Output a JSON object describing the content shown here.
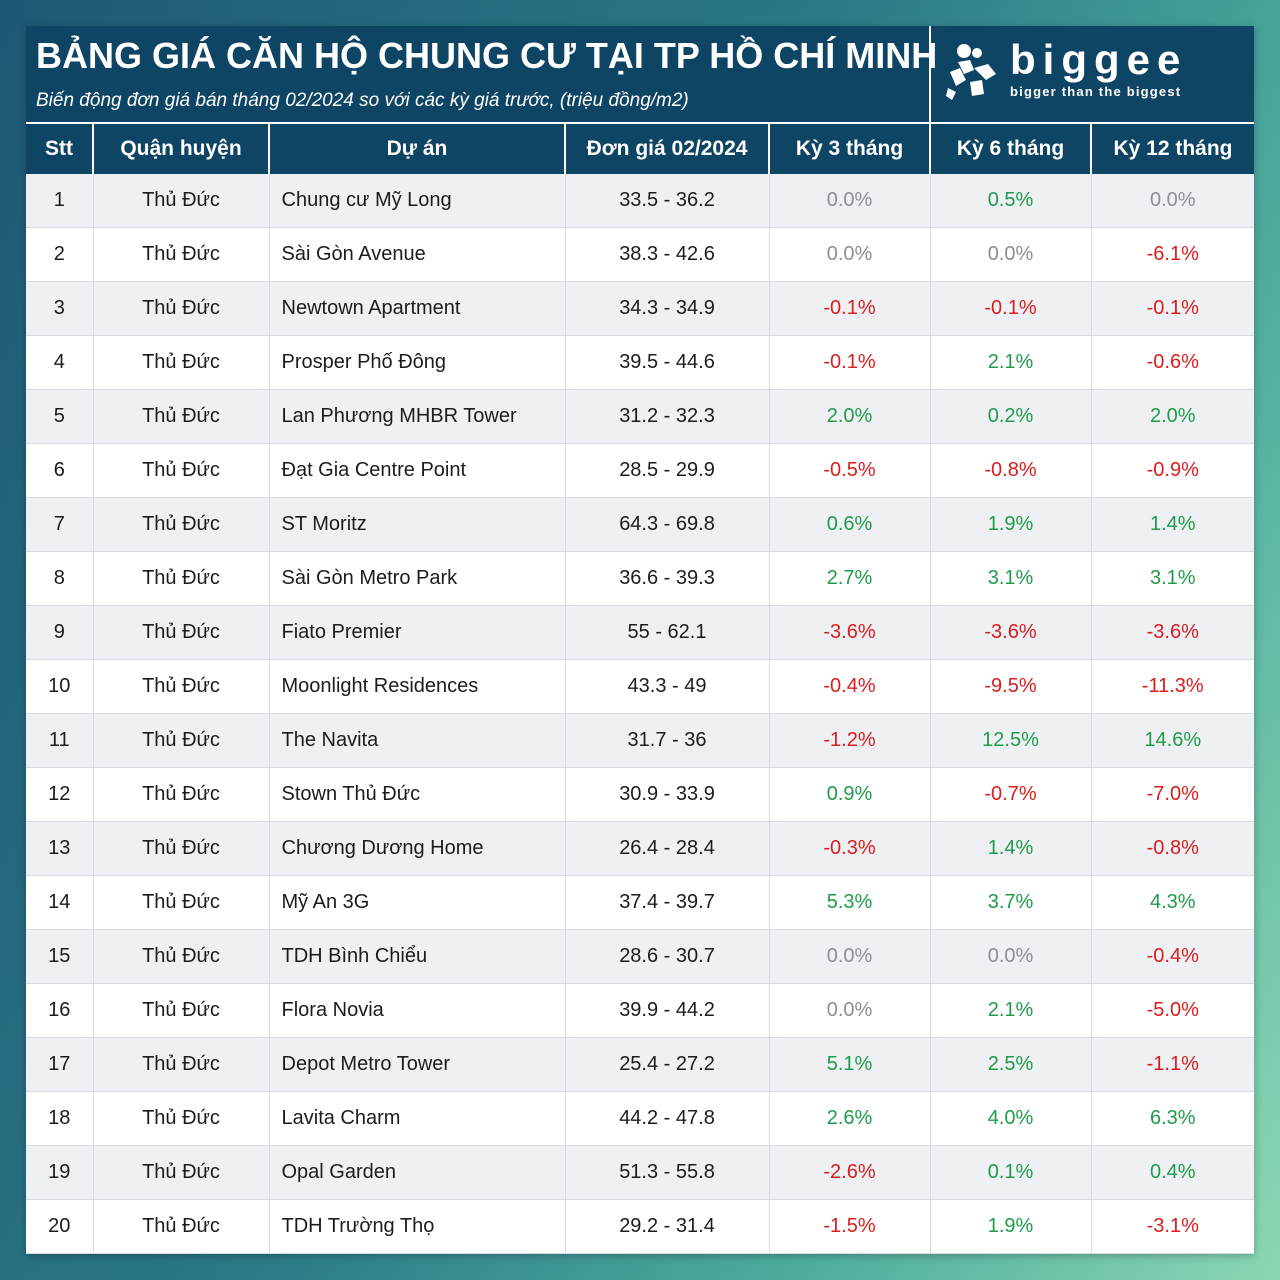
{
  "header": {
    "title": "BẢNG GIÁ CĂN HỘ CHUNG CƯ TẠI TP HỒ CHÍ MINH",
    "subtitle": "Biến động đơn giá bán tháng 02/2024 so với các kỳ giá trước, (triệu đồng/m2)"
  },
  "logo": {
    "wordmark": "biggee",
    "tagline": "bigger than the biggest",
    "icon": "biggee-logo-icon"
  },
  "colors": {
    "header_bg": "#0e4464",
    "positive": "#1f9c4b",
    "negative": "#d81e1e",
    "zero": "#8a8f96"
  },
  "table": {
    "columns": [
      "Stt",
      "Quận huyện",
      "Dự án",
      "Đơn giá 02/2024",
      "Kỳ 3 tháng",
      "Kỳ 6 tháng",
      "Kỳ 12 tháng"
    ],
    "rows": [
      {
        "stt": "1",
        "district": "Thủ Đức",
        "project": "Chung cư Mỹ Long",
        "price": "33.5 - 36.2",
        "k3": "0.0%",
        "k6": "0.5%",
        "k12": "0.0%"
      },
      {
        "stt": "2",
        "district": "Thủ Đức",
        "project": "Sài Gòn Avenue",
        "price": "38.3 - 42.6",
        "k3": "0.0%",
        "k6": "0.0%",
        "k12": "-6.1%"
      },
      {
        "stt": "3",
        "district": "Thủ Đức",
        "project": "Newtown Apartment",
        "price": "34.3 - 34.9",
        "k3": "-0.1%",
        "k6": "-0.1%",
        "k12": "-0.1%"
      },
      {
        "stt": "4",
        "district": "Thủ Đức",
        "project": "Prosper Phố Đông",
        "price": "39.5 - 44.6",
        "k3": "-0.1%",
        "k6": "2.1%",
        "k12": "-0.6%"
      },
      {
        "stt": "5",
        "district": "Thủ Đức",
        "project": "Lan Phương MHBR Tower",
        "price": "31.2 - 32.3",
        "k3": "2.0%",
        "k6": "0.2%",
        "k12": "2.0%"
      },
      {
        "stt": "6",
        "district": "Thủ Đức",
        "project": "Đạt Gia Centre Point",
        "price": "28.5 - 29.9",
        "k3": "-0.5%",
        "k6": "-0.8%",
        "k12": "-0.9%"
      },
      {
        "stt": "7",
        "district": "Thủ Đức",
        "project": "ST Moritz",
        "price": "64.3 - 69.8",
        "k3": "0.6%",
        "k6": "1.9%",
        "k12": "1.4%"
      },
      {
        "stt": "8",
        "district": "Thủ Đức",
        "project": "Sài Gòn Metro Park",
        "price": "36.6 - 39.3",
        "k3": "2.7%",
        "k6": "3.1%",
        "k12": "3.1%"
      },
      {
        "stt": "9",
        "district": "Thủ Đức",
        "project": "Fiato Premier",
        "price": "55 - 62.1",
        "k3": "-3.6%",
        "k6": "-3.6%",
        "k12": "-3.6%"
      },
      {
        "stt": "10",
        "district": "Thủ Đức",
        "project": "Moonlight Residences",
        "price": "43.3 - 49",
        "k3": "-0.4%",
        "k6": "-9.5%",
        "k12": "-11.3%"
      },
      {
        "stt": "11",
        "district": "Thủ Đức",
        "project": "The Navita",
        "price": "31.7 - 36",
        "k3": "-1.2%",
        "k6": "12.5%",
        "k12": "14.6%"
      },
      {
        "stt": "12",
        "district": "Thủ Đức",
        "project": "Stown Thủ Đức",
        "price": "30.9 - 33.9",
        "k3": "0.9%",
        "k6": "-0.7%",
        "k12": "-7.0%"
      },
      {
        "stt": "13",
        "district": "Thủ Đức",
        "project": "Chương Dương Home",
        "price": "26.4 - 28.4",
        "k3": "-0.3%",
        "k6": "1.4%",
        "k12": "-0.8%"
      },
      {
        "stt": "14",
        "district": "Thủ Đức",
        "project": "Mỹ An 3G",
        "price": "37.4 - 39.7",
        "k3": "5.3%",
        "k6": "3.7%",
        "k12": "4.3%"
      },
      {
        "stt": "15",
        "district": "Thủ Đức",
        "project": "TDH Bình Chiểu",
        "price": "28.6 - 30.7",
        "k3": "0.0%",
        "k6": "0.0%",
        "k12": "-0.4%"
      },
      {
        "stt": "16",
        "district": "Thủ Đức",
        "project": "Flora Novia",
        "price": "39.9 - 44.2",
        "k3": "0.0%",
        "k6": "2.1%",
        "k12": "-5.0%"
      },
      {
        "stt": "17",
        "district": "Thủ Đức",
        "project": "Depot Metro Tower",
        "price": "25.4 - 27.2",
        "k3": "5.1%",
        "k6": "2.5%",
        "k12": "-1.1%"
      },
      {
        "stt": "18",
        "district": "Thủ Đức",
        "project": "Lavita Charm",
        "price": "44.2 - 47.8",
        "k3": "2.6%",
        "k6": "4.0%",
        "k12": "6.3%"
      },
      {
        "stt": "19",
        "district": "Thủ Đức",
        "project": "Opal Garden",
        "price": "51.3 - 55.8",
        "k3": "-2.6%",
        "k6": "0.1%",
        "k12": "0.4%"
      },
      {
        "stt": "20",
        "district": "Thủ Đức",
        "project": "TDH Trường Thọ",
        "price": "29.2 - 31.4",
        "k3": "-1.5%",
        "k6": "1.9%",
        "k12": "-3.1%"
      }
    ]
  }
}
